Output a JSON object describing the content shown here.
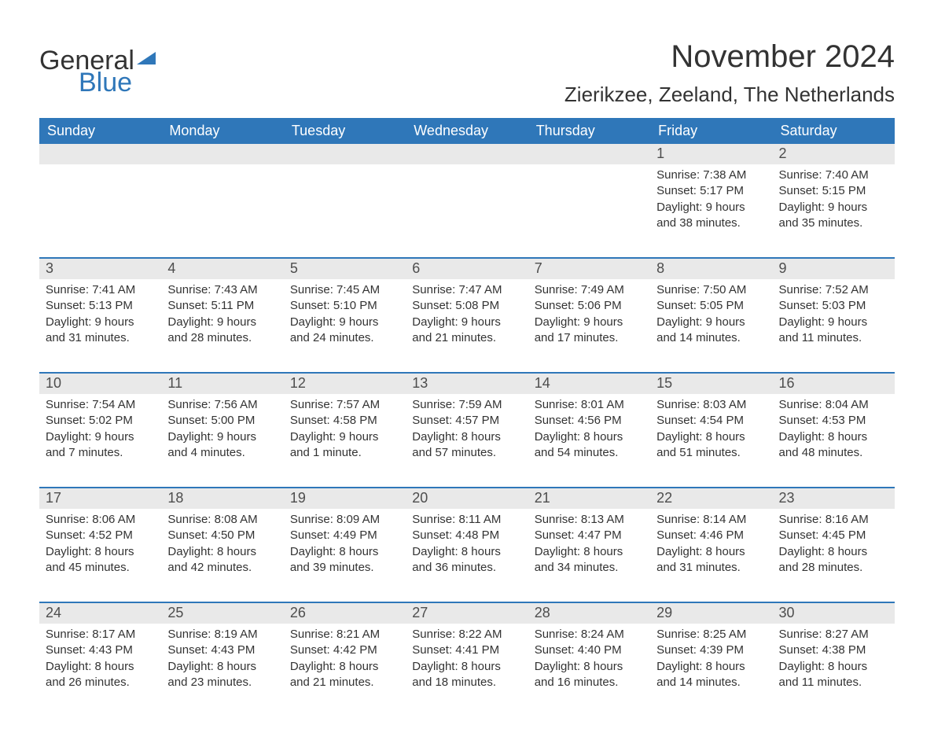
{
  "brand": {
    "word1": "General",
    "word2": "Blue"
  },
  "header": {
    "month_title": "November 2024",
    "location": "Zierikzee, Zeeland, The Netherlands"
  },
  "calendar": {
    "day_names": [
      "Sunday",
      "Monday",
      "Tuesday",
      "Wednesday",
      "Thursday",
      "Friday",
      "Saturday"
    ],
    "colors": {
      "header_bg": "#2f77b9",
      "header_text": "#ffffff",
      "day_band_bg": "#e9e9e9",
      "row_border": "#2f77b9",
      "body_text": "#333333"
    },
    "type": "month-grid",
    "weeks": [
      [
        {
          "day": "",
          "sunrise": "",
          "sunset": "",
          "daylight1": "",
          "daylight2": ""
        },
        {
          "day": "",
          "sunrise": "",
          "sunset": "",
          "daylight1": "",
          "daylight2": ""
        },
        {
          "day": "",
          "sunrise": "",
          "sunset": "",
          "daylight1": "",
          "daylight2": ""
        },
        {
          "day": "",
          "sunrise": "",
          "sunset": "",
          "daylight1": "",
          "daylight2": ""
        },
        {
          "day": "",
          "sunrise": "",
          "sunset": "",
          "daylight1": "",
          "daylight2": ""
        },
        {
          "day": "1",
          "sunrise": "Sunrise: 7:38 AM",
          "sunset": "Sunset: 5:17 PM",
          "daylight1": "Daylight: 9 hours",
          "daylight2": "and 38 minutes."
        },
        {
          "day": "2",
          "sunrise": "Sunrise: 7:40 AM",
          "sunset": "Sunset: 5:15 PM",
          "daylight1": "Daylight: 9 hours",
          "daylight2": "and 35 minutes."
        }
      ],
      [
        {
          "day": "3",
          "sunrise": "Sunrise: 7:41 AM",
          "sunset": "Sunset: 5:13 PM",
          "daylight1": "Daylight: 9 hours",
          "daylight2": "and 31 minutes."
        },
        {
          "day": "4",
          "sunrise": "Sunrise: 7:43 AM",
          "sunset": "Sunset: 5:11 PM",
          "daylight1": "Daylight: 9 hours",
          "daylight2": "and 28 minutes."
        },
        {
          "day": "5",
          "sunrise": "Sunrise: 7:45 AM",
          "sunset": "Sunset: 5:10 PM",
          "daylight1": "Daylight: 9 hours",
          "daylight2": "and 24 minutes."
        },
        {
          "day": "6",
          "sunrise": "Sunrise: 7:47 AM",
          "sunset": "Sunset: 5:08 PM",
          "daylight1": "Daylight: 9 hours",
          "daylight2": "and 21 minutes."
        },
        {
          "day": "7",
          "sunrise": "Sunrise: 7:49 AM",
          "sunset": "Sunset: 5:06 PM",
          "daylight1": "Daylight: 9 hours",
          "daylight2": "and 17 minutes."
        },
        {
          "day": "8",
          "sunrise": "Sunrise: 7:50 AM",
          "sunset": "Sunset: 5:05 PM",
          "daylight1": "Daylight: 9 hours",
          "daylight2": "and 14 minutes."
        },
        {
          "day": "9",
          "sunrise": "Sunrise: 7:52 AM",
          "sunset": "Sunset: 5:03 PM",
          "daylight1": "Daylight: 9 hours",
          "daylight2": "and 11 minutes."
        }
      ],
      [
        {
          "day": "10",
          "sunrise": "Sunrise: 7:54 AM",
          "sunset": "Sunset: 5:02 PM",
          "daylight1": "Daylight: 9 hours",
          "daylight2": "and 7 minutes."
        },
        {
          "day": "11",
          "sunrise": "Sunrise: 7:56 AM",
          "sunset": "Sunset: 5:00 PM",
          "daylight1": "Daylight: 9 hours",
          "daylight2": "and 4 minutes."
        },
        {
          "day": "12",
          "sunrise": "Sunrise: 7:57 AM",
          "sunset": "Sunset: 4:58 PM",
          "daylight1": "Daylight: 9 hours",
          "daylight2": "and 1 minute."
        },
        {
          "day": "13",
          "sunrise": "Sunrise: 7:59 AM",
          "sunset": "Sunset: 4:57 PM",
          "daylight1": "Daylight: 8 hours",
          "daylight2": "and 57 minutes."
        },
        {
          "day": "14",
          "sunrise": "Sunrise: 8:01 AM",
          "sunset": "Sunset: 4:56 PM",
          "daylight1": "Daylight: 8 hours",
          "daylight2": "and 54 minutes."
        },
        {
          "day": "15",
          "sunrise": "Sunrise: 8:03 AM",
          "sunset": "Sunset: 4:54 PM",
          "daylight1": "Daylight: 8 hours",
          "daylight2": "and 51 minutes."
        },
        {
          "day": "16",
          "sunrise": "Sunrise: 8:04 AM",
          "sunset": "Sunset: 4:53 PM",
          "daylight1": "Daylight: 8 hours",
          "daylight2": "and 48 minutes."
        }
      ],
      [
        {
          "day": "17",
          "sunrise": "Sunrise: 8:06 AM",
          "sunset": "Sunset: 4:52 PM",
          "daylight1": "Daylight: 8 hours",
          "daylight2": "and 45 minutes."
        },
        {
          "day": "18",
          "sunrise": "Sunrise: 8:08 AM",
          "sunset": "Sunset: 4:50 PM",
          "daylight1": "Daylight: 8 hours",
          "daylight2": "and 42 minutes."
        },
        {
          "day": "19",
          "sunrise": "Sunrise: 8:09 AM",
          "sunset": "Sunset: 4:49 PM",
          "daylight1": "Daylight: 8 hours",
          "daylight2": "and 39 minutes."
        },
        {
          "day": "20",
          "sunrise": "Sunrise: 8:11 AM",
          "sunset": "Sunset: 4:48 PM",
          "daylight1": "Daylight: 8 hours",
          "daylight2": "and 36 minutes."
        },
        {
          "day": "21",
          "sunrise": "Sunrise: 8:13 AM",
          "sunset": "Sunset: 4:47 PM",
          "daylight1": "Daylight: 8 hours",
          "daylight2": "and 34 minutes."
        },
        {
          "day": "22",
          "sunrise": "Sunrise: 8:14 AM",
          "sunset": "Sunset: 4:46 PM",
          "daylight1": "Daylight: 8 hours",
          "daylight2": "and 31 minutes."
        },
        {
          "day": "23",
          "sunrise": "Sunrise: 8:16 AM",
          "sunset": "Sunset: 4:45 PM",
          "daylight1": "Daylight: 8 hours",
          "daylight2": "and 28 minutes."
        }
      ],
      [
        {
          "day": "24",
          "sunrise": "Sunrise: 8:17 AM",
          "sunset": "Sunset: 4:43 PM",
          "daylight1": "Daylight: 8 hours",
          "daylight2": "and 26 minutes."
        },
        {
          "day": "25",
          "sunrise": "Sunrise: 8:19 AM",
          "sunset": "Sunset: 4:43 PM",
          "daylight1": "Daylight: 8 hours",
          "daylight2": "and 23 minutes."
        },
        {
          "day": "26",
          "sunrise": "Sunrise: 8:21 AM",
          "sunset": "Sunset: 4:42 PM",
          "daylight1": "Daylight: 8 hours",
          "daylight2": "and 21 minutes."
        },
        {
          "day": "27",
          "sunrise": "Sunrise: 8:22 AM",
          "sunset": "Sunset: 4:41 PM",
          "daylight1": "Daylight: 8 hours",
          "daylight2": "and 18 minutes."
        },
        {
          "day": "28",
          "sunrise": "Sunrise: 8:24 AM",
          "sunset": "Sunset: 4:40 PM",
          "daylight1": "Daylight: 8 hours",
          "daylight2": "and 16 minutes."
        },
        {
          "day": "29",
          "sunrise": "Sunrise: 8:25 AM",
          "sunset": "Sunset: 4:39 PM",
          "daylight1": "Daylight: 8 hours",
          "daylight2": "and 14 minutes."
        },
        {
          "day": "30",
          "sunrise": "Sunrise: 8:27 AM",
          "sunset": "Sunset: 4:38 PM",
          "daylight1": "Daylight: 8 hours",
          "daylight2": "and 11 minutes."
        }
      ]
    ]
  }
}
